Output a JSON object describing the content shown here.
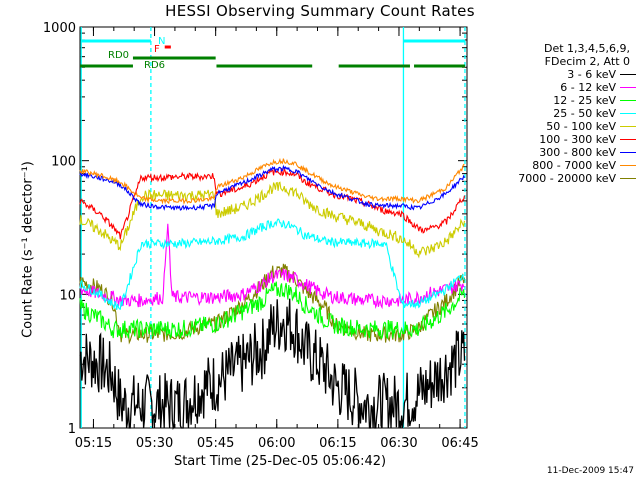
{
  "chart_data": {
    "type": "line",
    "title": "HESSI Observing Summary Count Rates",
    "xlabel": "Start Time (25-Dec-05 05:06:42)",
    "ylabel": "Count Rate (s⁻¹ detector⁻¹)",
    "ylog": true,
    "ylim": [
      1,
      1000
    ],
    "xlim_minutes": [
      5.0,
      100.0
    ],
    "x_tick_labels": [
      "05:15",
      "05:30",
      "05:45",
      "06:00",
      "06:15",
      "06:30",
      "06:45"
    ],
    "x_tick_minutes": [
      8.3,
      23.3,
      38.3,
      53.3,
      68.3,
      83.3,
      98.3
    ],
    "y_tick_labels": [
      "1",
      "10",
      "100",
      "1000"
    ],
    "y_tick_values": [
      1,
      10,
      100,
      1000
    ],
    "grid": false,
    "legend_position": "right",
    "legend_header": [
      "Det 1,3,4,5,6,9,",
      "FDecim 2, Att 0"
    ],
    "x": [
      5,
      10,
      13,
      15,
      20,
      25,
      30,
      35,
      38,
      38.5,
      45,
      50,
      52,
      55,
      58,
      60,
      65,
      68,
      68.5,
      75,
      78,
      80,
      84,
      88,
      90,
      95,
      99
    ],
    "series": [
      {
        "name": "3 - 6 keV",
        "color": "#000000",
        "values": [
          3.5,
          3.0,
          2.5,
          1.5,
          1.5,
          1.5,
          1.5,
          2.0,
          2.2,
          2.2,
          3.0,
          4.0,
          5.5,
          6.5,
          5.5,
          4.0,
          2.8,
          2.0,
          2.0,
          1.5,
          1.5,
          1.5,
          1.5,
          1.8,
          2.0,
          2.8,
          3.5
        ]
      },
      {
        "name": "6 - 12 keV",
        "color": "#ff00ff",
        "values": [
          11,
          10,
          9.5,
          9,
          9,
          9.5,
          9.5,
          9.5,
          9.5,
          9.5,
          10,
          12,
          13.5,
          14,
          13,
          12,
          10,
          9.5,
          9.5,
          9,
          9,
          9,
          9,
          9.5,
          10,
          11,
          12
        ]
      },
      {
        "name": "12 - 25 keV",
        "color": "#00ff00",
        "values": [
          8,
          6.5,
          5.5,
          5.5,
          5.5,
          5.5,
          5.5,
          5.8,
          6,
          6,
          7.5,
          9,
          10.5,
          11,
          10,
          8.5,
          6.5,
          5.8,
          5.8,
          5.5,
          5.5,
          5.5,
          5.5,
          5.5,
          6,
          7.5,
          10
        ]
      },
      {
        "name": "25 - 50 keV",
        "color": "#00ffff",
        "values": [
          12,
          10,
          8.5,
          8,
          24,
          24,
          24,
          24.5,
          25,
          25,
          27,
          32,
          34,
          34,
          31,
          28,
          25,
          24.5,
          24.5,
          24,
          24,
          24,
          8.5,
          8.5,
          9,
          11,
          14
        ]
      },
      {
        "name": "50 - 100 keV",
        "color": "#cccc00",
        "values": [
          36,
          30,
          25,
          23,
          55,
          55,
          55,
          55,
          56,
          40,
          45,
          56,
          62,
          63,
          58,
          50,
          41,
          38,
          38,
          33,
          30,
          29,
          26,
          21,
          21,
          25,
          34
        ]
      },
      {
        "name": "100 - 300 keV",
        "color": "#ff0000",
        "values": [
          50,
          40,
          32,
          27,
          75,
          75,
          76,
          76,
          77,
          56,
          63,
          76,
          82,
          83,
          79,
          70,
          60,
          55,
          55,
          48,
          44,
          42,
          40,
          31,
          30,
          35,
          53
        ]
      },
      {
        "name": "300 - 800 keV",
        "color": "#0000ff",
        "values": [
          80,
          74,
          70,
          66,
          47,
          45,
          44,
          45,
          46,
          57,
          68,
          80,
          86,
          87,
          84,
          76,
          62,
          56,
          56,
          48,
          46,
          46,
          46,
          44,
          47,
          57,
          75
        ]
      },
      {
        "name": "800 - 7000 keV",
        "color": "#ff8800",
        "values": [
          84,
          78,
          72,
          69,
          52,
          50,
          50,
          51,
          52,
          63,
          75,
          90,
          97,
          100,
          95,
          86,
          70,
          63,
          63,
          54,
          52,
          52,
          52,
          50,
          53,
          63,
          90
        ]
      },
      {
        "name": "7000 - 20000 keV",
        "color": "#808000",
        "values": [
          12.5,
          11,
          9,
          5,
          5,
          5,
          5.2,
          5.8,
          6,
          6,
          8.5,
          12,
          14.5,
          15,
          13,
          11,
          8,
          5.8,
          5.8,
          5,
          5,
          5,
          5,
          5.5,
          6.5,
          9,
          13
        ]
      }
    ],
    "annotations": [
      {
        "label": "RD0",
        "color": "#008000"
      },
      {
        "label": "RD6",
        "color": "#008000"
      },
      {
        "label": "N",
        "color": "#00ffff"
      },
      {
        "label": "F",
        "color": "#ff0000"
      }
    ],
    "vertical_markers": {
      "solid_minutes": [
        5.3,
        84.4
      ],
      "dashed_minutes": [
        22.4,
        99.5
      ],
      "color": "#00ffff"
    },
    "night_bars_minutes": [
      [
        5.3,
        22.4
      ],
      [
        84.4,
        99.5
      ]
    ],
    "flare_bar_minutes": [
      25.8,
      27.3
    ],
    "rd_bars_minutes": [
      [
        5.0,
        18.0
      ],
      [
        18.0,
        38.3
      ],
      [
        38.5,
        62.0
      ],
      [
        68.5,
        84.4
      ],
      [
        84.4,
        86.0
      ],
      [
        87.0,
        99.5
      ]
    ],
    "timestamp": "11-Dec-2009 15:47"
  }
}
